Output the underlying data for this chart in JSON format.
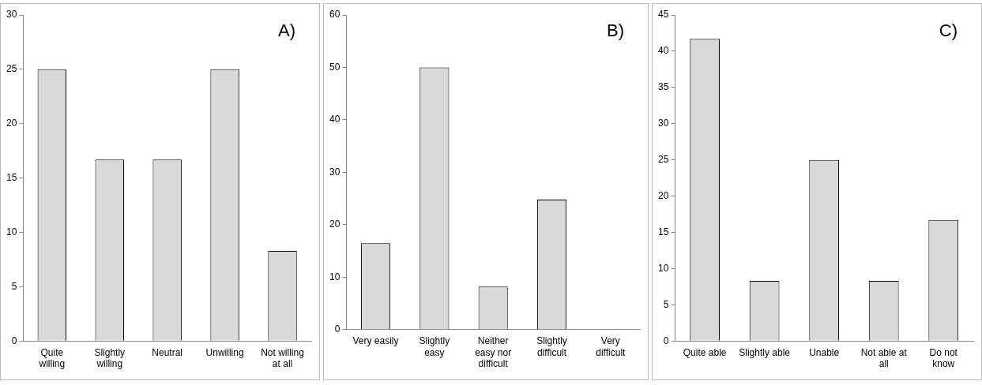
{
  "chart_data": [
    {
      "type": "bar",
      "annotations": [
        "A)"
      ],
      "categories": [
        "Quite willing",
        "Slightly willing",
        "Neutral",
        "Unwilling",
        "Not willing at all"
      ],
      "values": [
        25,
        16.7,
        16.7,
        25,
        8.3
      ],
      "color": "#d9d9d9",
      "ylim": [
        0,
        30
      ],
      "yticks": [
        0,
        5,
        10,
        15,
        20,
        25,
        30
      ],
      "grid": false,
      "legend": false
    },
    {
      "type": "bar",
      "annotations": [
        "B)"
      ],
      "categories": [
        "Very easily",
        "Slightly easy",
        "Neither easy nor difficult",
        "Slightly difficult",
        "Very difficult"
      ],
      "values": [
        16.5,
        50,
        8.2,
        24.8,
        0
      ],
      "color": "#d9d9d9",
      "ylim": [
        0,
        60
      ],
      "yticks": [
        0,
        10,
        20,
        30,
        40,
        50,
        60
      ],
      "grid": false,
      "legend": false
    },
    {
      "type": "bar",
      "annotations": [
        "C)"
      ],
      "categories": [
        "Quite able",
        "Slightly able",
        "Unable",
        "Not able at all",
        "Do not know"
      ],
      "values": [
        41.7,
        8.3,
        25,
        8.3,
        16.7
      ],
      "color": "#d9d9d9",
      "ylim": [
        0,
        45
      ],
      "yticks": [
        0,
        5,
        10,
        15,
        20,
        25,
        30,
        35,
        40,
        45
      ],
      "grid": false,
      "legend": false
    }
  ]
}
